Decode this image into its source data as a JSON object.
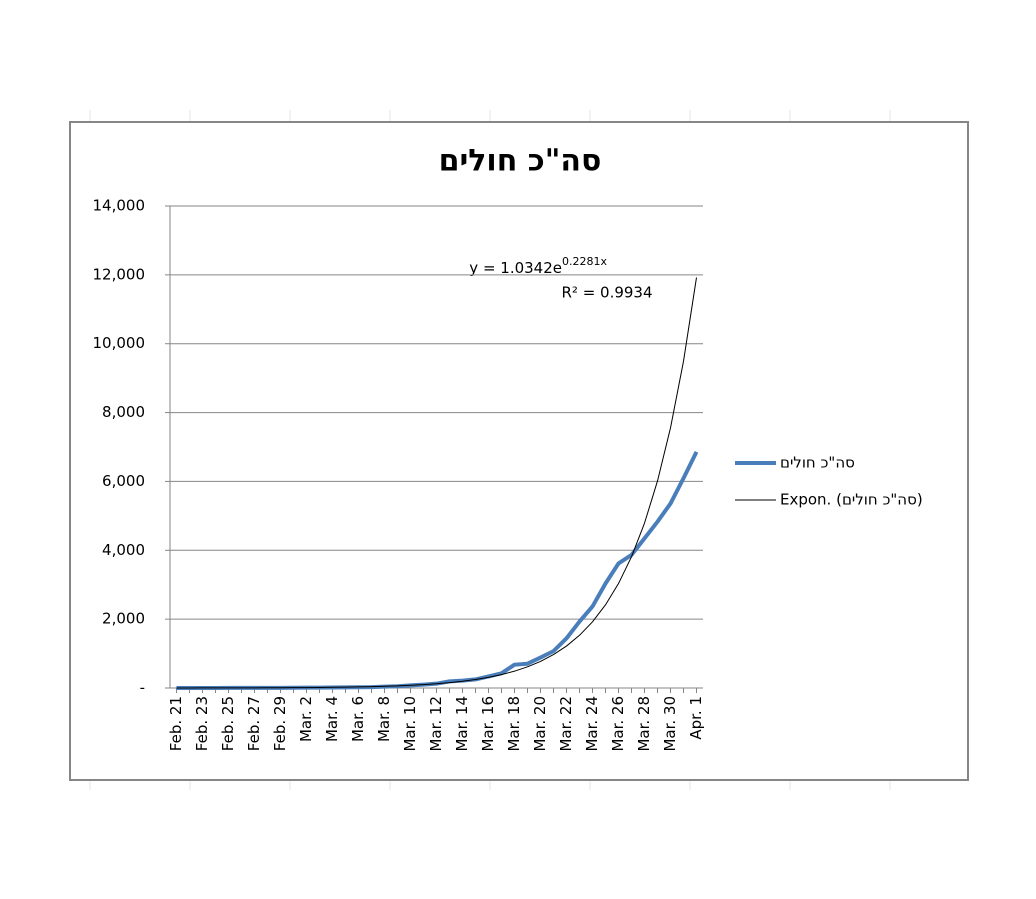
{
  "chart_data": {
    "type": "line",
    "title": "סה\"כ חולים",
    "categories": [
      "Feb. 21",
      null,
      "Feb. 23",
      null,
      "Feb. 25",
      null,
      "Feb. 27",
      null,
      "Feb. 29",
      null,
      "Mar. 2",
      null,
      "Mar. 4",
      null,
      "Mar. 6",
      null,
      "Mar. 8",
      null,
      "Mar. 10",
      null,
      "Mar. 12",
      null,
      "Mar. 14",
      null,
      "Mar. 16",
      null,
      "Mar. 18",
      null,
      "Mar. 20",
      null,
      "Mar. 22",
      null,
      "Mar. 24",
      null,
      "Mar. 26",
      null,
      "Mar. 28",
      null,
      "Mar. 30",
      null,
      "Apr. 1"
    ],
    "series": [
      {
        "name": "סה\"כ חולים",
        "color": "#4a7ebb",
        "width": 4,
        "values": [
          1,
          1,
          1,
          1,
          2,
          2,
          3,
          3,
          5,
          7,
          10,
          12,
          15,
          17,
          21,
          25,
          39,
          50,
          75,
          97,
          126,
          193,
          213,
          250,
          337,
          427,
          677,
          705,
          883,
          1071,
          1442,
          1930,
          2369,
          3035,
          3619,
          3865,
          4347,
          4831,
          5358,
          6092,
          6857
        ]
      },
      {
        "name": "Expon. (סה\"כ חולים)",
        "color": "#000000",
        "width": 1,
        "values": [
          1.3,
          1.6,
          2.1,
          2.6,
          3.2,
          4.1,
          5.1,
          6.4,
          8.1,
          10.1,
          12.7,
          16,
          20.1,
          25.2,
          31.7,
          39.8,
          50,
          62.8,
          78.9,
          99.1,
          124.5,
          156.4,
          196.5,
          246.8,
          310,
          389,
          489,
          615,
          772,
          970,
          1218,
          1531,
          1923,
          2415,
          3034,
          3811,
          4788,
          6014,
          7555,
          9491,
          11923
        ]
      }
    ],
    "ylim": [
      0,
      14000
    ],
    "yticks": [
      {
        "value": 0,
        "label": "-"
      },
      {
        "value": 2000,
        "label": "2,000"
      },
      {
        "value": 4000,
        "label": "4,000"
      },
      {
        "value": 6000,
        "label": "6,000"
      },
      {
        "value": 8000,
        "label": "8,000"
      },
      {
        "value": 10000,
        "label": "10,000"
      },
      {
        "value": 12000,
        "label": "12,000"
      },
      {
        "value": 14000,
        "label": "14,000"
      }
    ],
    "grid": true,
    "legend": "right",
    "equation": "y = 1.0342e",
    "equation_exponent": "0.2281x",
    "r_squared": "R² = 0.9934"
  }
}
